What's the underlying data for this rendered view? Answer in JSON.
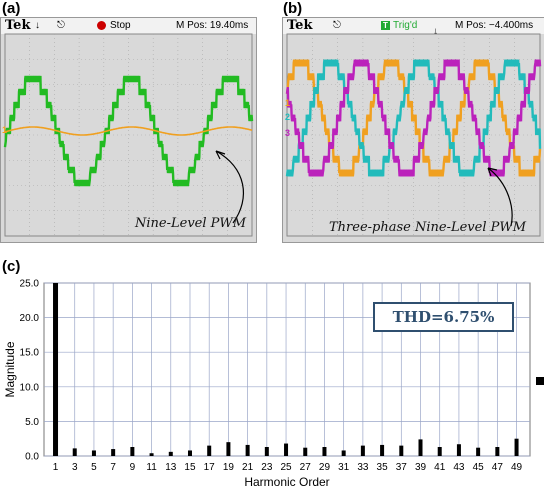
{
  "panels": {
    "a": {
      "letter": "(a)",
      "brand": "Tek",
      "status": "Stop",
      "mpos": "M Pos: 19.40ms",
      "channel_marker": "1",
      "annotation": "Nine-Level PWM",
      "colors": {
        "main": "#22bb22",
        "secondary": "#f0a020",
        "status_dot": "#cc0000"
      }
    },
    "b": {
      "letter": "(b)",
      "brand": "Tek",
      "status": "Trig'd",
      "status_icon": "T",
      "mpos": "M Pos: −4.400ms",
      "channel_markers": [
        "1",
        "2",
        "3"
      ],
      "annotation": "Three-phase Nine-Level PWM",
      "colors": {
        "phase1": "#f0a020",
        "phase2": "#22bbbb",
        "phase3": "#bb22bb",
        "status_box": "#22aa33"
      }
    },
    "c": {
      "letter": "(c)",
      "thd_label": "THD=6.75%"
    }
  },
  "chart_data": {
    "type": "bar",
    "xlabel": "Harmonic Order",
    "ylabel": "Magnitude",
    "ylim": [
      0,
      25
    ],
    "yticks": [
      "0.0",
      "5.0",
      "10.0",
      "15.0",
      "20.0",
      "25.0"
    ],
    "grid": true,
    "categories": [
      1,
      3,
      5,
      7,
      9,
      11,
      13,
      15,
      17,
      19,
      21,
      23,
      25,
      27,
      29,
      31,
      33,
      35,
      37,
      39,
      41,
      43,
      45,
      47,
      49
    ],
    "values": [
      25.0,
      1.1,
      0.8,
      1.0,
      1.3,
      0.4,
      0.6,
      0.8,
      1.5,
      2.0,
      1.6,
      1.3,
      1.8,
      1.2,
      1.3,
      0.8,
      1.5,
      1.6,
      1.5,
      2.4,
      1.3,
      1.7,
      1.2,
      1.3,
      2.5
    ],
    "bar_color": "#000000"
  }
}
